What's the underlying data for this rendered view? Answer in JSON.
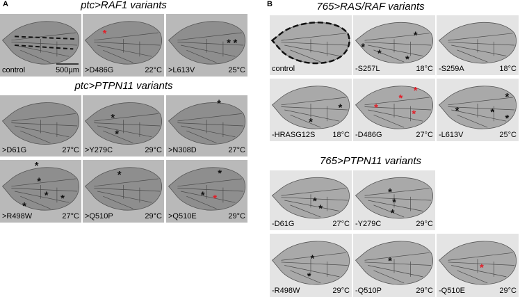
{
  "panels": [
    {
      "label": "A",
      "sections": [
        {
          "title": "ptc>RAF1 variants",
          "rows": [
            [
              {
                "genotype": "control",
                "scale_bar": "500µm"
              },
              {
                "genotype": ">D486G",
                "temperature": "22°C",
                "asterisks": [
                  {
                    "symbol": "*",
                    "color": "#e0202a"
                  }
                ]
              },
              {
                "genotype": ">L613V",
                "temperature": "25°C",
                "asterisks": [
                  {
                    "symbol": "*",
                    "color": "#111"
                  },
                  {
                    "symbol": "*",
                    "color": "#111"
                  }
                ]
              }
            ]
          ]
        },
        {
          "title": "ptc>PTPN11 variants",
          "rows": [
            [
              {
                "genotype": ">D61G",
                "temperature": "27°C"
              },
              {
                "genotype": ">Y279C",
                "temperature": "29°C",
                "asterisks": [
                  {
                    "symbol": "*",
                    "color": "#111"
                  },
                  {
                    "symbol": "*",
                    "color": "#111"
                  }
                ]
              },
              {
                "genotype": ">N308D",
                "temperature": "27°C",
                "asterisks": [
                  {
                    "symbol": "*",
                    "color": "#111"
                  }
                ]
              }
            ],
            [
              {
                "genotype": ">R498W",
                "temperature": "27°C",
                "asterisks": [
                  {
                    "symbol": "*",
                    "color": "#111"
                  },
                  {
                    "symbol": "*",
                    "color": "#111"
                  },
                  {
                    "symbol": "*",
                    "color": "#111"
                  },
                  {
                    "symbol": "*",
                    "color": "#111"
                  },
                  {
                    "symbol": "*",
                    "color": "#111"
                  }
                ]
              },
              {
                "genotype": ">Q510P",
                "temperature": "29°C",
                "asterisks": [
                  {
                    "symbol": "*",
                    "color": "#111"
                  }
                ]
              },
              {
                "genotype": ">Q510E",
                "temperature": "29°C",
                "asterisks": [
                  {
                    "symbol": "*",
                    "color": "#111"
                  },
                  {
                    "symbol": "*",
                    "color": "#111"
                  },
                  {
                    "symbol": "*",
                    "color": "#e0202a"
                  }
                ]
              }
            ]
          ]
        }
      ]
    },
    {
      "label": "B",
      "sections": [
        {
          "title": "765>RAS/RAF variants",
          "rows": [
            [
              {
                "genotype": "control"
              },
              {
                "genotype": "-S257L",
                "temperature": "18°C",
                "asterisks": [
                  {
                    "symbol": "*",
                    "color": "#111"
                  },
                  {
                    "symbol": "*",
                    "color": "#111"
                  },
                  {
                    "symbol": "*",
                    "color": "#111"
                  },
                  {
                    "symbol": "*",
                    "color": "#111"
                  }
                ]
              },
              {
                "genotype": "-S259A",
                "temperature": "18°C"
              }
            ],
            [
              {
                "genotype": "-HRASG12S",
                "temperature": "18°C",
                "asterisks": [
                  {
                    "symbol": "*",
                    "color": "#111"
                  },
                  {
                    "symbol": "*",
                    "color": "#111"
                  }
                ]
              },
              {
                "genotype": "-D486G",
                "temperature": "27°C",
                "asterisks": [
                  {
                    "symbol": "*",
                    "color": "#e0202a"
                  },
                  {
                    "symbol": "*",
                    "color": "#e0202a"
                  },
                  {
                    "symbol": "*",
                    "color": "#e0202a"
                  },
                  {
                    "symbol": "*",
                    "color": "#e0202a"
                  }
                ]
              },
              {
                "genotype": "-L613V",
                "temperature": "25°C",
                "asterisks": [
                  {
                    "symbol": "*",
                    "color": "#111"
                  },
                  {
                    "symbol": "*",
                    "color": "#111"
                  },
                  {
                    "symbol": "*",
                    "color": "#111"
                  },
                  {
                    "symbol": "*",
                    "color": "#111"
                  }
                ]
              }
            ]
          ]
        },
        {
          "title": "765>PTPN11 variants",
          "rows": [
            [
              {
                "genotype": "-D61G",
                "temperature": "27°C",
                "asterisks": [
                  {
                    "symbol": "*",
                    "color": "#111"
                  },
                  {
                    "symbol": "*",
                    "color": "#111"
                  }
                ]
              },
              {
                "genotype": "-Y279C",
                "temperature": "29°C",
                "asterisks": [
                  {
                    "symbol": "*",
                    "color": "#111"
                  },
                  {
                    "symbol": "*",
                    "color": "#111"
                  },
                  {
                    "symbol": "*",
                    "color": "#111"
                  }
                ]
              }
            ],
            [
              {
                "genotype": "-R498W",
                "temperature": "29°C",
                "asterisks": [
                  {
                    "symbol": "*",
                    "color": "#111"
                  },
                  {
                    "symbol": "*",
                    "color": "#111"
                  }
                ]
              },
              {
                "genotype": "-Q510P",
                "temperature": "29°C",
                "asterisks": [
                  {
                    "symbol": "*",
                    "color": "#111"
                  }
                ]
              },
              {
                "genotype": "-Q510E",
                "temperature": "29°C",
                "asterisks": [
                  {
                    "symbol": "*",
                    "color": "#e0202a"
                  }
                ]
              }
            ]
          ]
        }
      ]
    }
  ]
}
